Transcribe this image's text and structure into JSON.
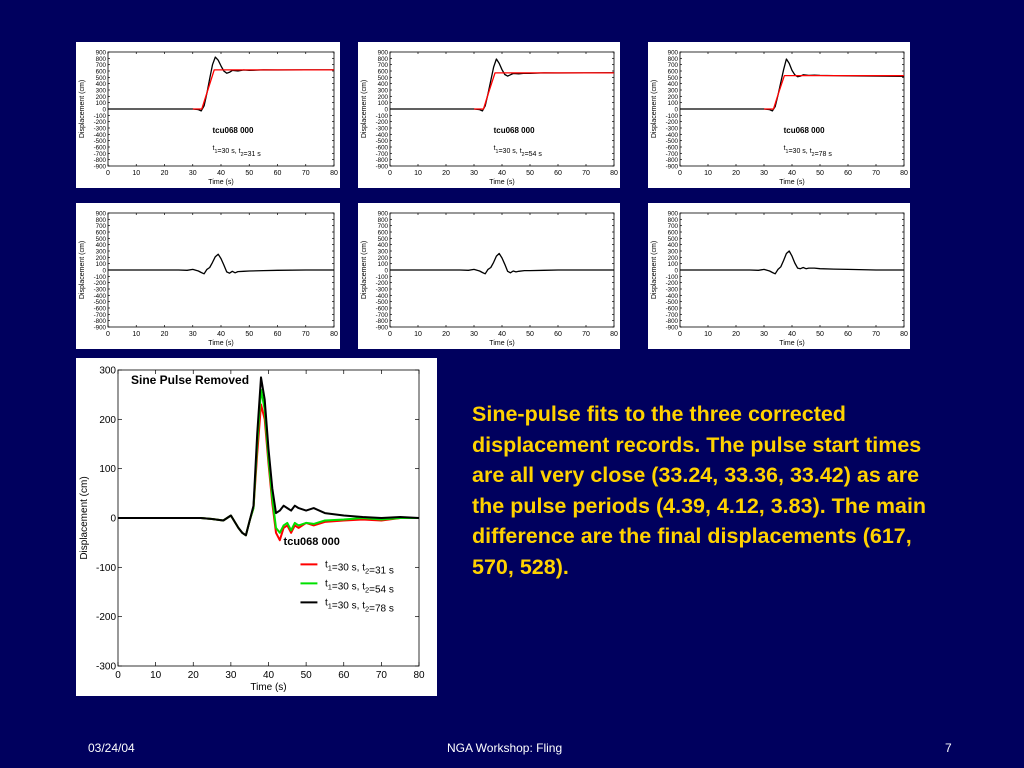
{
  "slide": {
    "body_text": "Sine-pulse fits to the three corrected displacement records.  The pulse start times are all very close (33.24, 33.36, 33.42) as are the pulse periods (4.39, 4.12, 3.83).  The main difference are the final displacements (617, 570, 528).",
    "footer_date": "03/24/04",
    "footer_center": "NGA Workshop: Fling",
    "footer_page": "7"
  },
  "colors": {
    "background": "#00005e",
    "body_text": "#ffd200",
    "trace": "#000000",
    "fit": "#ff0000",
    "green": "#00e000"
  },
  "chart_data": [
    {
      "type": "line",
      "panel": "top-left",
      "xlabel": "Time (s)",
      "ylabel": "Displacement (cm)",
      "xlim": [
        0,
        80
      ],
      "ylim": [
        -900,
        900
      ],
      "xticks": [
        "0",
        "10",
        "20",
        "30",
        "40",
        "50",
        "60",
        "70",
        "80"
      ],
      "yticks": [
        "900",
        "800",
        "700",
        "600",
        "500",
        "400",
        "300",
        "200",
        "100",
        "0",
        "-100",
        "-200",
        "-300",
        "-400",
        "-500",
        "-600",
        "-700",
        "-800",
        "-900"
      ],
      "annotation": "tcu068 000",
      "annotation2": "t1=30 s, t2=31 s",
      "final_displacement": 617,
      "series": [
        {
          "color": "#000000",
          "x": [
            0,
            30,
            32,
            33,
            34,
            35,
            36,
            37,
            38,
            39,
            40,
            41,
            42,
            43,
            44,
            46,
            48,
            50,
            55,
            60,
            70,
            80
          ],
          "y": [
            0,
            0,
            -10,
            -30,
            50,
            250,
            480,
            700,
            820,
            770,
            680,
            600,
            565,
            580,
            610,
            600,
            615,
            610,
            617,
            615,
            617,
            617
          ]
        },
        {
          "color": "#ff0000",
          "x": [
            30,
            33.2,
            35.4,
            37.6,
            80
          ],
          "y": [
            0,
            0,
            308,
            617,
            617
          ]
        }
      ]
    },
    {
      "type": "line",
      "panel": "top-middle",
      "xlabel": "Time (s)",
      "ylabel": "Displacement (cm)",
      "xlim": [
        0,
        80
      ],
      "ylim": [
        -900,
        900
      ],
      "xticks": [
        "0",
        "10",
        "20",
        "30",
        "40",
        "50",
        "60",
        "70",
        "80"
      ],
      "yticks": [
        "900",
        "800",
        "700",
        "600",
        "500",
        "400",
        "300",
        "200",
        "100",
        "0",
        "-100",
        "-200",
        "-300",
        "-400",
        "-500",
        "-600",
        "-700",
        "-800",
        "-900"
      ],
      "annotation": "tcu068 000",
      "annotation2": "t1=30 s, t2=54 s",
      "final_displacement": 570,
      "series": [
        {
          "color": "#000000",
          "x": [
            0,
            30,
            32,
            33,
            34,
            35,
            36,
            37,
            38,
            39,
            40,
            41,
            42,
            43,
            44,
            46,
            48,
            50,
            55,
            60,
            70,
            80
          ],
          "y": [
            0,
            0,
            -10,
            -30,
            50,
            240,
            450,
            660,
            790,
            720,
            620,
            545,
            520,
            540,
            560,
            555,
            565,
            562,
            570,
            568,
            570,
            572
          ]
        },
        {
          "color": "#ff0000",
          "x": [
            30,
            33.4,
            35.4,
            37.5,
            80
          ],
          "y": [
            0,
            0,
            285,
            570,
            570
          ]
        }
      ]
    },
    {
      "type": "line",
      "panel": "top-right",
      "xlabel": "Time (s)",
      "ylabel": "Displacement (cm)",
      "xlim": [
        0,
        80
      ],
      "ylim": [
        -900,
        900
      ],
      "xticks": [
        "0",
        "10",
        "20",
        "30",
        "40",
        "50",
        "60",
        "70",
        "80"
      ],
      "yticks": [
        "900",
        "800",
        "700",
        "600",
        "500",
        "400",
        "300",
        "200",
        "100",
        "0",
        "-100",
        "-200",
        "-300",
        "-400",
        "-500",
        "-600",
        "-700",
        "-800",
        "-900"
      ],
      "annotation": "tcu068 000",
      "annotation2": "t1=30 s, t2=78 s",
      "final_displacement": 528,
      "series": [
        {
          "color": "#000000",
          "x": [
            0,
            30,
            32,
            33,
            34,
            35,
            36,
            37,
            38,
            39,
            40,
            41,
            42,
            43,
            44,
            46,
            48,
            50,
            55,
            60,
            70,
            80
          ],
          "y": [
            0,
            0,
            -10,
            -30,
            40,
            220,
            420,
            620,
            790,
            720,
            610,
            540,
            510,
            520,
            540,
            530,
            535,
            530,
            528,
            525,
            520,
            515
          ]
        },
        {
          "color": "#ff0000",
          "x": [
            30,
            33.4,
            35.3,
            37.3,
            80
          ],
          "y": [
            0,
            0,
            264,
            528,
            528
          ]
        }
      ]
    },
    {
      "type": "line",
      "panel": "bottom-left",
      "xlabel": "Time (s)",
      "ylabel": "Displacement (cm)",
      "xlim": [
        0,
        80
      ],
      "ylim": [
        -900,
        900
      ],
      "xticks": [
        "0",
        "10",
        "20",
        "30",
        "40",
        "50",
        "60",
        "70",
        "80"
      ],
      "yticks": [
        "900",
        "800",
        "700",
        "600",
        "500",
        "400",
        "300",
        "200",
        "100",
        "0",
        "-100",
        "-200",
        "-300",
        "-400",
        "-500",
        "-600",
        "-700",
        "-800",
        "-900"
      ],
      "series": [
        {
          "color": "#000000",
          "x": [
            0,
            25,
            28,
            30,
            32,
            33,
            34,
            35,
            36,
            37,
            38,
            39,
            40,
            41,
            42,
            43,
            44,
            45,
            46,
            48,
            50,
            55,
            60,
            70,
            80
          ],
          "y": [
            0,
            0,
            -5,
            10,
            -15,
            -40,
            -60,
            10,
            40,
            120,
            210,
            250,
            180,
            80,
            -30,
            -50,
            -20,
            -45,
            -25,
            -20,
            -15,
            -10,
            -5,
            0,
            0
          ]
        }
      ]
    },
    {
      "type": "line",
      "panel": "bottom-middle",
      "xlabel": "Time (s)",
      "ylabel": "Displacement (cm)",
      "xlim": [
        0,
        80
      ],
      "ylim": [
        -900,
        900
      ],
      "xticks": [
        "0",
        "10",
        "20",
        "30",
        "40",
        "50",
        "60",
        "70",
        "80"
      ],
      "yticks": [
        "900",
        "800",
        "700",
        "600",
        "500",
        "400",
        "300",
        "200",
        "100",
        "0",
        "-100",
        "-200",
        "-300",
        "-400",
        "-500",
        "-600",
        "-700",
        "-800",
        "-900"
      ],
      "series": [
        {
          "color": "#000000",
          "x": [
            0,
            25,
            28,
            30,
            32,
            33,
            34,
            35,
            36,
            37,
            38,
            39,
            40,
            41,
            42,
            43,
            44,
            45,
            46,
            48,
            50,
            55,
            60,
            70,
            80
          ],
          "y": [
            0,
            0,
            -5,
            10,
            -15,
            -40,
            -60,
            10,
            40,
            120,
            220,
            260,
            190,
            90,
            -20,
            -45,
            -15,
            -30,
            -20,
            -10,
            -10,
            -5,
            0,
            0,
            0
          ]
        }
      ]
    },
    {
      "type": "line",
      "panel": "bottom-right",
      "xlabel": "Time (s)",
      "ylabel": "Displacement (cm)",
      "xlim": [
        0,
        80
      ],
      "ylim": [
        -900,
        900
      ],
      "xticks": [
        "0",
        "10",
        "20",
        "30",
        "40",
        "50",
        "60",
        "70",
        "80"
      ],
      "yticks": [
        "900",
        "800",
        "700",
        "600",
        "500",
        "400",
        "300",
        "200",
        "100",
        "0",
        "-100",
        "-200",
        "-300",
        "-400",
        "-500",
        "-600",
        "-700",
        "-800",
        "-900"
      ],
      "series": [
        {
          "color": "#000000",
          "x": [
            0,
            25,
            28,
            30,
            32,
            33,
            34,
            35,
            36,
            37,
            38,
            39,
            40,
            41,
            42,
            43,
            44,
            45,
            46,
            48,
            50,
            55,
            60,
            70,
            80
          ],
          "y": [
            0,
            0,
            -5,
            10,
            -15,
            -40,
            -60,
            10,
            50,
            150,
            260,
            300,
            220,
            110,
            30,
            20,
            40,
            20,
            30,
            30,
            20,
            15,
            10,
            0,
            0
          ]
        }
      ]
    },
    {
      "type": "line",
      "panel": "sine-pulse-removed",
      "title": "Sine Pulse Removed",
      "annotation": "tcu068 000",
      "xlabel": "Time (s)",
      "ylabel": "Displacement (cm)",
      "xlim": [
        0,
        80
      ],
      "ylim": [
        -300,
        300
      ],
      "xticks": [
        "0",
        "10",
        "20",
        "30",
        "40",
        "50",
        "60",
        "70",
        "80"
      ],
      "yticks": [
        "300",
        "200",
        "100",
        "0",
        "-100",
        "-200",
        "-300"
      ],
      "legend_position": "lower-right",
      "series": [
        {
          "name": "t1=30 s, t2=31 s",
          "color": "#ff0000",
          "x": [
            0,
            22,
            25,
            28,
            30,
            32,
            33,
            34,
            35,
            36,
            37,
            38,
            39,
            40,
            41,
            42,
            43,
            44,
            45,
            46,
            47,
            48,
            50,
            52,
            55,
            60,
            65,
            70,
            75,
            80
          ],
          "y": [
            0,
            0,
            -2,
            -5,
            5,
            -20,
            -30,
            -35,
            -5,
            20,
            130,
            230,
            200,
            110,
            30,
            -30,
            -45,
            -20,
            -15,
            -30,
            -15,
            -20,
            -10,
            -15,
            -8,
            -5,
            -3,
            -5,
            0,
            0
          ]
        },
        {
          "name": "t1=30 s, t2=54 s",
          "color": "#00e000",
          "x": [
            0,
            22,
            25,
            28,
            30,
            32,
            33,
            34,
            35,
            36,
            37,
            38,
            39,
            40,
            41,
            42,
            43,
            44,
            45,
            46,
            47,
            48,
            50,
            52,
            55,
            60,
            65,
            70,
            75,
            80
          ],
          "y": [
            0,
            0,
            -2,
            -5,
            5,
            -20,
            -30,
            -35,
            -5,
            20,
            150,
            260,
            220,
            120,
            40,
            -20,
            -30,
            -15,
            -10,
            -25,
            -10,
            -15,
            -10,
            -12,
            -5,
            -3,
            0,
            -3,
            0,
            0
          ]
        },
        {
          "name": "t1=30 s, t2=78 s",
          "color": "#000000",
          "x": [
            0,
            22,
            25,
            28,
            30,
            32,
            33,
            34,
            35,
            36,
            37,
            38,
            39,
            40,
            41,
            42,
            43,
            44,
            45,
            46,
            47,
            48,
            50,
            52,
            55,
            60,
            65,
            70,
            75,
            80
          ],
          "y": [
            0,
            0,
            -2,
            -5,
            5,
            -20,
            -30,
            -35,
            -5,
            25,
            170,
            285,
            240,
            140,
            60,
            10,
            15,
            25,
            20,
            15,
            25,
            20,
            15,
            20,
            10,
            5,
            2,
            0,
            2,
            0
          ]
        }
      ]
    }
  ]
}
